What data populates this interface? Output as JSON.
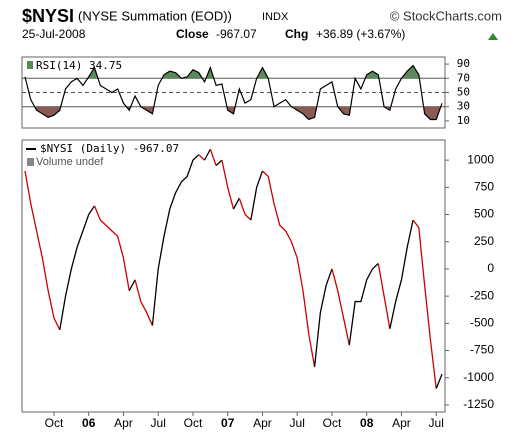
{
  "header": {
    "symbol": "$NYSI",
    "name": "(NYSE Summation (EOD))",
    "exchange": "INDX",
    "source": "© StockCharts.com",
    "date": "25-Jul-2008",
    "close_label": "Close",
    "close": "-967.07",
    "chg_label": "Chg",
    "chg": "+36.89 (+3.67%)"
  },
  "chart_data": [
    {
      "type": "rsi",
      "series": [
        {
          "name": "RSI(14) 34.75",
          "color": "#000000",
          "values": [
            72,
            40,
            25,
            20,
            15,
            18,
            25,
            55,
            65,
            70,
            60,
            72,
            85,
            60,
            55,
            50,
            55,
            35,
            25,
            45,
            30,
            25,
            20,
            60,
            75,
            80,
            78,
            70,
            72,
            82,
            78,
            65,
            85,
            60,
            62,
            25,
            20,
            55,
            35,
            40,
            70,
            85,
            70,
            30,
            35,
            40,
            30,
            25,
            20,
            12,
            15,
            55,
            60,
            65,
            30,
            20,
            18,
            70,
            55,
            75,
            80,
            75,
            30,
            25,
            55,
            70,
            80,
            88,
            75,
            20,
            12,
            12,
            34.75
          ]
        }
      ],
      "ylim": [
        0,
        100
      ],
      "yticks": [
        90,
        70,
        50,
        30,
        10
      ],
      "overbought": 70,
      "oversold": 30,
      "midline": 50,
      "overbought_color": "#5a8a5a",
      "oversold_color": "#8a5a55"
    },
    {
      "type": "line",
      "series": [
        {
          "name": "$NYSI (Daily) -967.07",
          "up_color": "#000000",
          "down_color": "#cc0000",
          "values": [
            900,
            600,
            350,
            100,
            -200,
            -450,
            -560,
            -250,
            0,
            200,
            350,
            500,
            580,
            450,
            400,
            350,
            300,
            100,
            -200,
            -100,
            -300,
            -400,
            -520,
            0,
            300,
            550,
            700,
            800,
            850,
            1000,
            1050,
            1000,
            1100,
            950,
            1000,
            750,
            550,
            650,
            500,
            450,
            750,
            900,
            850,
            600,
            400,
            350,
            250,
            100,
            -200,
            -600,
            -900,
            -400,
            -150,
            0,
            -200,
            -450,
            -700,
            -300,
            -300,
            -100,
            0,
            50,
            -250,
            -550,
            -300,
            -100,
            200,
            450,
            380,
            -150,
            -650,
            -1100,
            -967.07
          ]
        }
      ],
      "volume_label": "Volume undef",
      "categories": [
        null,
        null,
        null,
        null,
        null,
        "Oct",
        null,
        null,
        null,
        null,
        null,
        "06",
        null,
        null,
        null,
        null,
        null,
        "Apr",
        null,
        null,
        null,
        null,
        null,
        "Jul",
        null,
        null,
        null,
        null,
        null,
        "Oct",
        null,
        null,
        null,
        null,
        null,
        "07",
        null,
        null,
        null,
        null,
        null,
        "Apr",
        null,
        null,
        null,
        null,
        null,
        "Jul",
        null,
        null,
        null,
        null,
        null,
        "Oct",
        null,
        null,
        null,
        null,
        null,
        "08",
        null,
        null,
        null,
        null,
        null,
        "Apr",
        null,
        null,
        null,
        null,
        null,
        "Jul",
        null
      ],
      "ylim": [
        -1315,
        1185
      ],
      "yticks": [
        1000,
        750,
        500,
        250,
        0,
        -250,
        -500,
        -750,
        -1000,
        -1250
      ],
      "grid": false
    }
  ]
}
